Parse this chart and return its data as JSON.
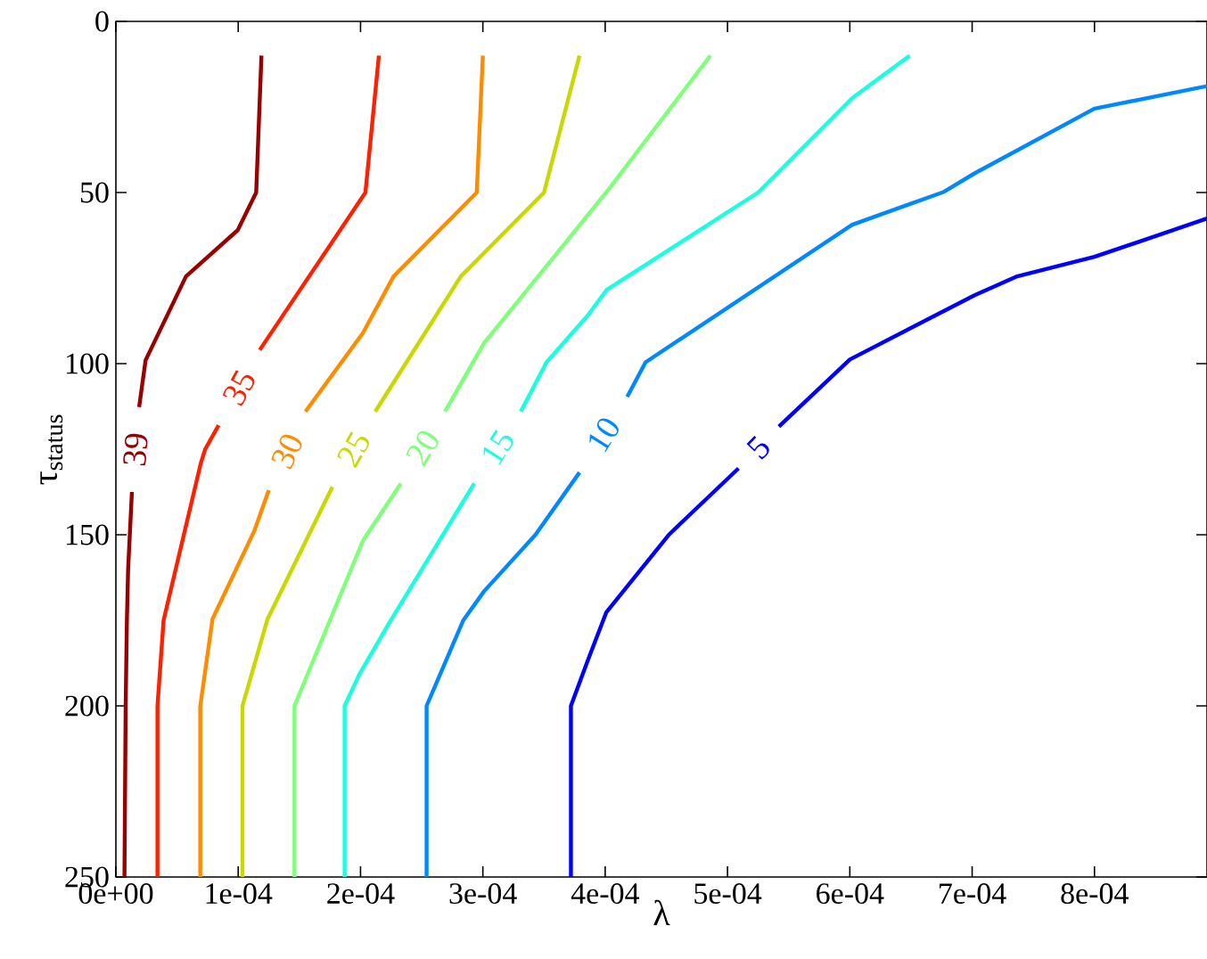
{
  "chart_data": {
    "type": "line",
    "xlabel": "λ",
    "ylabel": "τ$_{status}$",
    "xlim": [
      0,
      0.000892
    ],
    "ylim": [
      250,
      0
    ],
    "xticks": [
      {
        "value": 0,
        "label": "0e+00"
      },
      {
        "value": 0.0001,
        "label": "1e-04"
      },
      {
        "value": 0.0002,
        "label": "2e-04"
      },
      {
        "value": 0.0003,
        "label": "3e-04"
      },
      {
        "value": 0.0004,
        "label": "4e-04"
      },
      {
        "value": 0.0005,
        "label": "5e-04"
      },
      {
        "value": 0.0006,
        "label": "6e-04"
      },
      {
        "value": 0.0007,
        "label": "7e-04"
      },
      {
        "value": 0.0008,
        "label": "8e-04"
      }
    ],
    "yticks": [
      0,
      50,
      100,
      150,
      200,
      250
    ],
    "legend": false,
    "grid": false,
    "marker": "none",
    "line_style": "solid",
    "series": [
      {
        "name": "39",
        "color": "#990000",
        "x": [
          0.000119,
          0.0001147,
          9.96e-05,
          5.73e-05,
          2.43e-05,
          1.9e-05,
          1.6e-05,
          1.31e-05,
          1e-05,
          9e-06,
          8e-06,
          7e-06
        ],
        "values": [
          10,
          50,
          61,
          74.5,
          99,
          112.7,
          null,
          137.5,
          160,
          175,
          200,
          250
        ]
      },
      {
        "name": "35",
        "color": "#ff2000",
        "x": [
          0.000215,
          0.000204,
          0.0001176,
          0.0001,
          8.4e-05,
          7.3e-05,
          6.95e-05,
          3.9e-05,
          3.4e-05,
          3.4e-05
        ],
        "values": [
          10,
          50,
          96,
          null,
          118,
          125,
          129,
          175,
          200,
          250
        ]
      },
      {
        "name": "30",
        "color": "#ff8c00",
        "x": [
          0.0003,
          0.000295,
          0.000227,
          0.000202,
          0.000155,
          0.00014,
          0.000125,
          0.000113,
          7.9e-05,
          6.9e-05,
          6.9e-05
        ],
        "values": [
          10,
          50,
          74.5,
          91,
          114,
          null,
          137,
          149,
          174.6,
          200,
          250
        ]
      },
      {
        "name": "25",
        "color": "#c8d800",
        "x": [
          0.000379,
          0.00035,
          0.000282,
          0.000212,
          0.0002,
          0.000177,
          0.000124,
          0.0001035,
          0.0001035
        ],
        "values": [
          10,
          50,
          74.5,
          114,
          null,
          136,
          174.6,
          200,
          250
        ]
      },
      {
        "name": "20",
        "color": "#7fff7a",
        "x": [
          0.000486,
          0.000403,
          0.000301,
          0.000269,
          0.00025,
          0.000233,
          0.000202,
          0.000146,
          0.000146
        ],
        "values": [
          10,
          49,
          94,
          114,
          null,
          135,
          151.7,
          200,
          250
        ]
      },
      {
        "name": "15",
        "color": "#1affe0",
        "x": [
          0.000649,
          0.000602,
          0.000525,
          0.000401,
          0.000386,
          0.000352,
          0.000331,
          0.00031,
          0.000293,
          0.000223,
          0.000199,
          0.000187,
          0.000187
        ],
        "values": [
          10,
          22.4,
          50,
          78.5,
          85.8,
          99.6,
          114,
          null,
          135,
          176,
          190.8,
          200,
          250
        ]
      },
      {
        "name": "10",
        "color": "#0088ff",
        "x": [
          0.000892,
          0.0008,
          0.000702,
          0.000677,
          0.000602,
          0.000433,
          0.000418,
          0.0004,
          0.000379,
          0.000343,
          0.000301,
          0.000284,
          0.000254,
          0.000254
        ],
        "values": [
          18.9,
          25.5,
          44.4,
          49.8,
          59.4,
          99.6,
          109.7,
          null,
          131.8,
          150,
          166.5,
          175,
          200,
          250
        ]
      },
      {
        "name": "5",
        "color": "#0000ff",
        "x": [
          0.000892,
          0.0008,
          0.000736,
          0.000702,
          0.0006,
          0.000542,
          0.00052,
          0.000509,
          0.000452,
          0.000401,
          0.000386,
          0.000372,
          0.000372
        ],
        "values": [
          57.6,
          68.8,
          74.6,
          80,
          98.8,
          118.4,
          null,
          130.6,
          150,
          172.6,
          186.5,
          200,
          250
        ]
      }
    ]
  }
}
